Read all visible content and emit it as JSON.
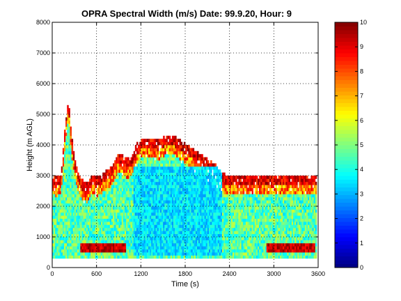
{
  "chart_data": {
    "type": "heatmap",
    "title": "OPRA Spectral Width (m/s)  Date: 99.9.20, Hour: 9",
    "xlabel": "Time (s)",
    "ylabel": "Height (m AGL)",
    "xlim": [
      0,
      3600
    ],
    "ylim": [
      0,
      8000
    ],
    "xticks": [
      "0",
      "600",
      "1200",
      "1800",
      "2400",
      "3000",
      "3600"
    ],
    "yticks": [
      "0",
      "1000",
      "2000",
      "3000",
      "4000",
      "5000",
      "6000",
      "7000",
      "8000"
    ],
    "grid": true,
    "colorbar": {
      "colormap": "jet",
      "clim": [
        0,
        10
      ],
      "ticks": [
        "0",
        "1",
        "2",
        "3",
        "4",
        "5",
        "6",
        "7",
        "8",
        "9",
        "10"
      ]
    },
    "echo_top_profile": {
      "time_s": [
        0,
        60,
        120,
        180,
        220,
        260,
        300,
        360,
        420,
        480,
        540,
        600,
        660,
        720,
        780,
        840,
        900,
        960,
        1020,
        1080,
        1140,
        1200,
        1260,
        1320,
        1380,
        1440,
        1500,
        1560,
        1620,
        1680,
        1740,
        1800,
        1860,
        1920,
        1980,
        2040,
        2100,
        2160,
        2220,
        2280,
        2340,
        2400,
        2460,
        2520,
        2580,
        2640,
        2700,
        2760,
        2820,
        2880,
        2940,
        3000,
        3060,
        3120,
        3180,
        3240,
        3300,
        3360,
        3420,
        3480,
        3540,
        3580
      ],
      "top_height_m": [
        3000,
        2900,
        3000,
        4700,
        5500,
        4300,
        3600,
        3000,
        2800,
        2700,
        3000,
        2900,
        3000,
        3100,
        3200,
        3400,
        3700,
        3600,
        3500,
        3600,
        4000,
        4200,
        4200,
        4200,
        4200,
        4100,
        4200,
        4300,
        4300,
        4200,
        4100,
        4000,
        3900,
        3800,
        3700,
        3600,
        3500,
        3400,
        3300,
        3100,
        3000,
        3000,
        3000,
        3000,
        3000,
        3000,
        3000,
        3000,
        3000,
        3000,
        3000,
        3000,
        3000,
        3000,
        3000,
        3000,
        3000,
        3000,
        3000,
        3000,
        3000,
        3000
      ],
      "bottom_height_m": 300
    },
    "notable_features": [
      {
        "description": "low band of high spectral width",
        "time_range_s": [
          380,
          1000
        ],
        "height_range_m": [
          500,
          800
        ],
        "value_m_s": 10
      },
      {
        "description": "low band of high spectral width",
        "time_range_s": [
          2900,
          3550
        ],
        "height_range_m": [
          500,
          800
        ],
        "value_m_s": 10
      },
      {
        "description": "core of low spectral width",
        "time_range_s": [
          1100,
          2300
        ],
        "height_range_m": [
          400,
          3300
        ],
        "value_m_s": 3.5
      }
    ]
  }
}
